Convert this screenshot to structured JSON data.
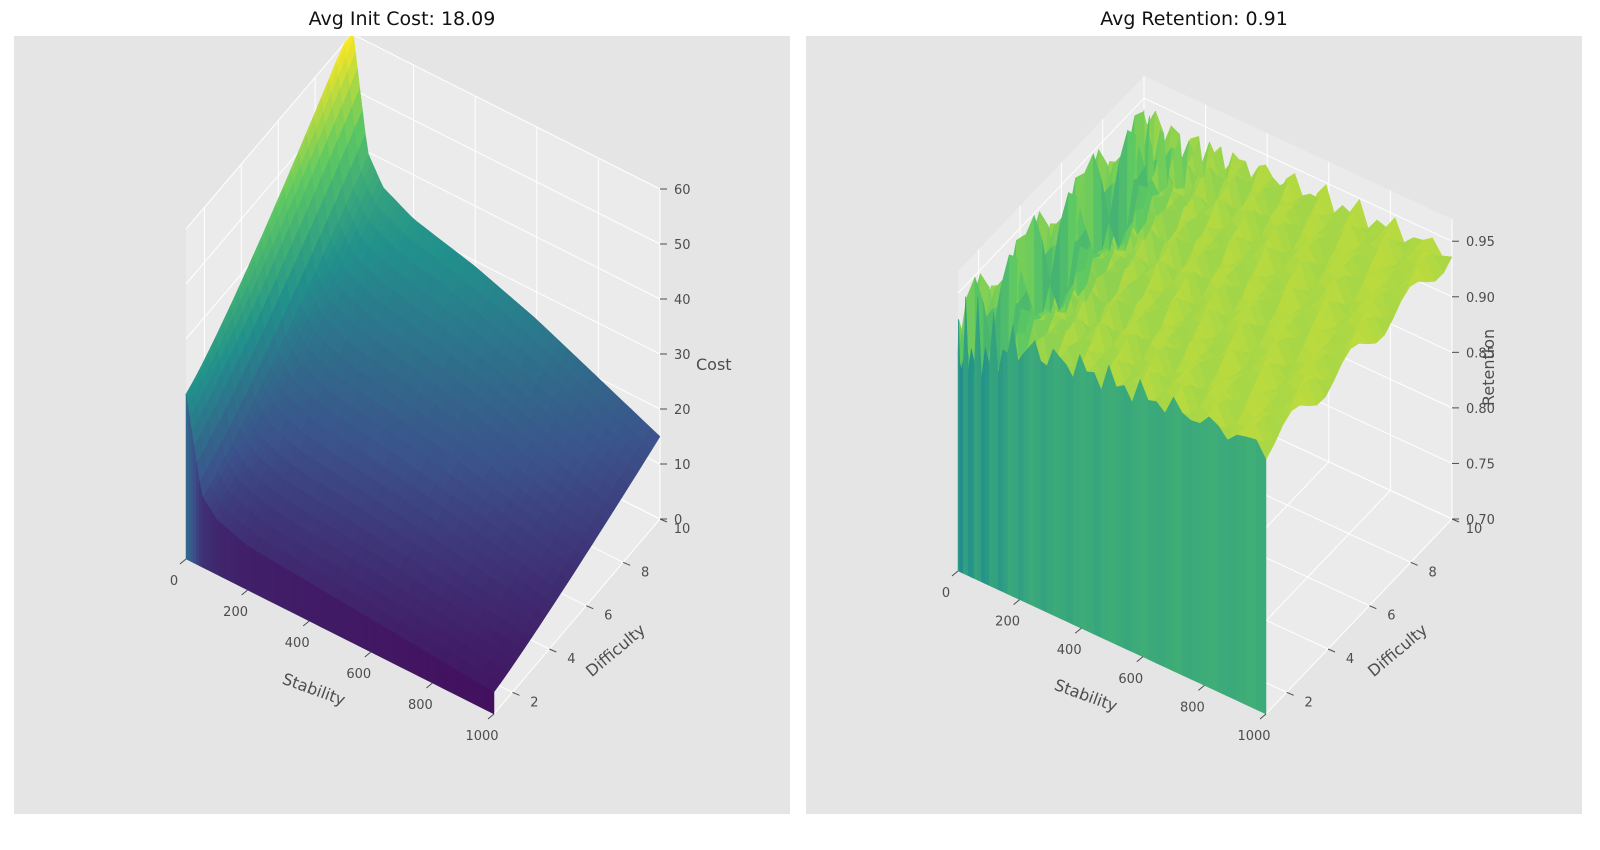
{
  "figure": {
    "background": "#ffffff",
    "panel_background": "#e5e5e5",
    "grid_color": "#ffffff",
    "colormap": "viridis",
    "colormap_stops": [
      "#440154",
      "#3b528b",
      "#21918c",
      "#5ec962",
      "#fde725"
    ]
  },
  "chart_data": [
    {
      "type": "surface3d",
      "title": "Avg Init Cost: 18.09",
      "xlabel": "Stability",
      "ylabel": "Difficulty",
      "zlabel": "Cost",
      "xlim": [
        0,
        1000
      ],
      "ylim": [
        1,
        10
      ],
      "zlim": [
        0,
        60
      ],
      "x_ticks": [
        "0",
        "200",
        "400",
        "600",
        "800",
        "1000"
      ],
      "y_ticks": [
        "2",
        "4",
        "6",
        "8",
        "10"
      ],
      "z_ticks": [
        "0",
        "10",
        "20",
        "30",
        "40",
        "50",
        "60"
      ],
      "surface_profile": {
        "description": "cost falls steeply from the low-stability edge and flattens; cost rises with difficulty",
        "stability": [
          0,
          50,
          100,
          200,
          400,
          600,
          800,
          1000
        ],
        "cost_at_difficulty_1": [
          30,
          13,
          10,
          8,
          7,
          6,
          5,
          4
        ],
        "cost_at_difficulty_10": [
          62,
          40,
          35,
          32,
          29,
          25,
          20,
          15
        ]
      }
    },
    {
      "type": "surface3d",
      "title": "Avg Retention: 0.91",
      "xlabel": "Stability",
      "ylabel": "Difficulty",
      "zlabel": "Retention",
      "xlim": [
        0,
        1000
      ],
      "ylim": [
        1,
        10
      ],
      "zlim": [
        0.7,
        0.97
      ],
      "x_ticks": [
        "0",
        "200",
        "400",
        "600",
        "800",
        "1000"
      ],
      "y_ticks": [
        "2",
        "4",
        "6",
        "8",
        "10"
      ],
      "z_ticks": [
        "0.70",
        "0.75",
        "0.80",
        "0.85",
        "0.90",
        "0.95"
      ],
      "surface_profile": {
        "description": "retention oscillates strongly between 0.7 and 0.97 at low stability, mostly near 0.9-0.95 elsewhere",
        "stability": [
          0,
          25,
          50,
          100,
          200,
          400,
          1000
        ],
        "retention_low": [
          0.7,
          0.72,
          0.74,
          0.78,
          0.85,
          0.88,
          0.9
        ],
        "retention_high": [
          0.95,
          0.96,
          0.96,
          0.95,
          0.95,
          0.95,
          0.95
        ]
      }
    }
  ]
}
